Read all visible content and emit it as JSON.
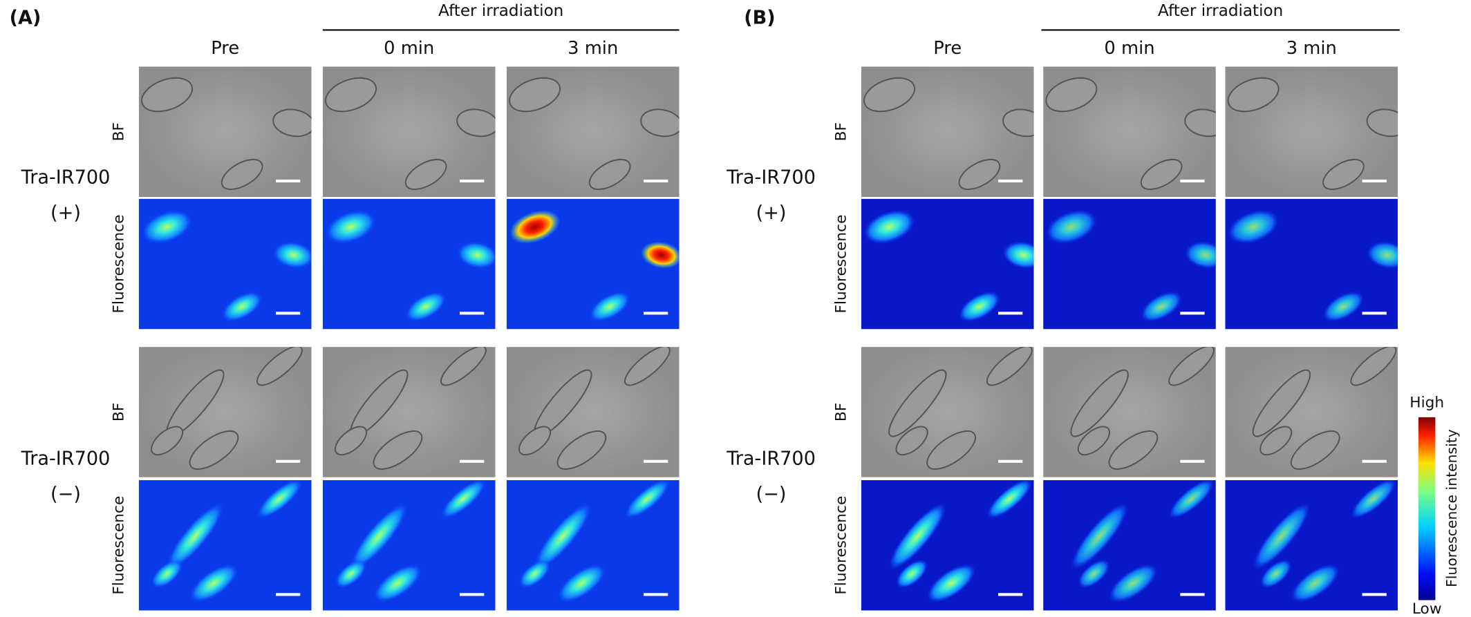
{
  "panels": [
    {
      "label": "(A)",
      "group_header": "After irradiation",
      "columns": [
        "Pre",
        "0 min",
        "3 min"
      ],
      "rows": [
        {
          "condition": "Tra-IR700",
          "sign": "(+)",
          "channels": [
            "BF",
            "Fluorescence"
          ]
        },
        {
          "condition": "Tra-IR700",
          "sign": "(−)",
          "channels": [
            "BF",
            "Fluorescence"
          ]
        }
      ]
    },
    {
      "label": "(B)",
      "group_header": "After irradiation",
      "columns": [
        "Pre",
        "0 min",
        "3 min"
      ],
      "rows": [
        {
          "condition": "Tra-IR700",
          "sign": "(+)",
          "channels": [
            "BF",
            "Fluorescence"
          ]
        },
        {
          "condition": "Tra-IR700",
          "sign": "(−)",
          "channels": [
            "BF",
            "Fluorescence"
          ]
        }
      ]
    }
  ],
  "colorbar": {
    "title": "Fluorescence intensity",
    "high": "High",
    "low": "Low"
  }
}
